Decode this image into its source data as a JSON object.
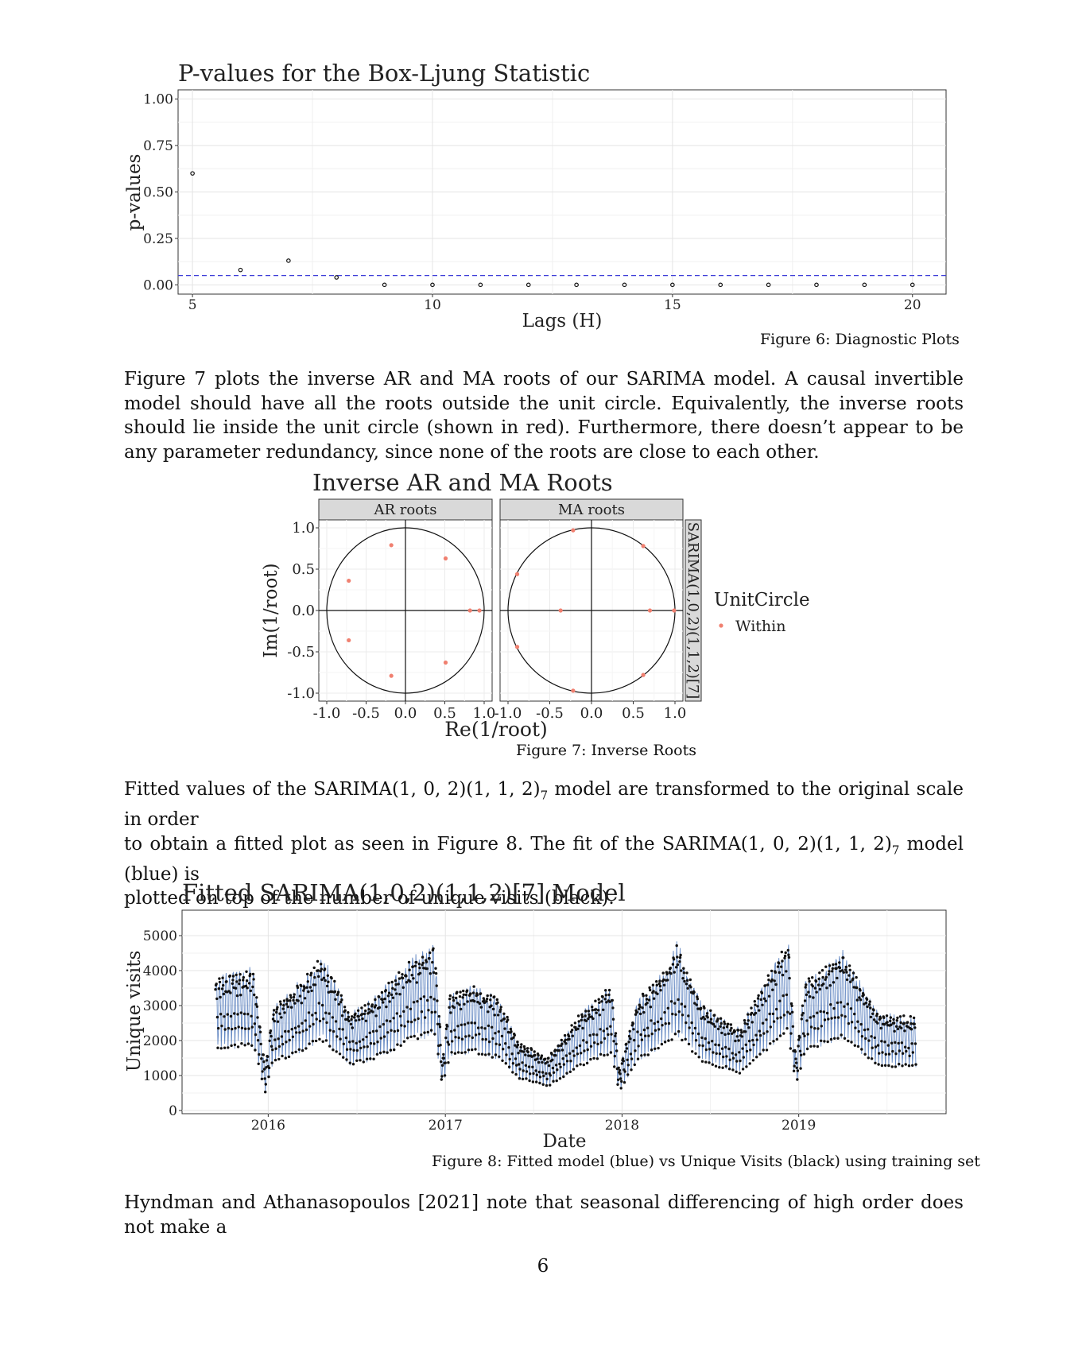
{
  "figure6": {
    "caption": "Figure 6: Diagnostic Plots",
    "chart_data": {
      "type": "scatter",
      "title": "P-values for the Box-Ljung Statistic",
      "xlabel": "Lags (H)",
      "ylabel": "p-values",
      "xlim": [
        4.7,
        20.7
      ],
      "ylim": [
        -0.05,
        1.05
      ],
      "xticks": [
        5,
        10,
        15,
        20
      ],
      "yticks": [
        0.0,
        0.25,
        0.5,
        0.75,
        1.0
      ],
      "ytick_labels": [
        "0.00",
        "0.25",
        "0.50",
        "0.75",
        "1.00"
      ],
      "threshold": 0.05,
      "x": [
        5,
        6,
        7,
        8,
        9,
        10,
        11,
        12,
        13,
        14,
        15,
        16,
        17,
        18,
        19,
        20
      ],
      "y": [
        0.6,
        0.08,
        0.13,
        0.04,
        0.0,
        0.0,
        0.0,
        0.0,
        0.0,
        0.0,
        0.0,
        0.0,
        0.0,
        0.0,
        0.0,
        0.0
      ],
      "grid": true
    }
  },
  "para1": "Figure 7 plots the inverse AR and MA roots of our SARIMA model. A causal invertible model should have all the roots outside the unit circle. Equivalently, the inverse roots should lie inside the unit circle (shown in red). Furthermore, there doesn’t appear to be any parameter redundancy, since none of the roots are close to each other.",
  "figure7": {
    "caption": "Figure 7: Inverse Roots",
    "chart_data": {
      "type": "scatter",
      "title": "Inverse AR and MA Roots",
      "xlabel": "Re(1/root)",
      "ylabel": "Im(1/root)",
      "xlim": [
        -1.0,
        1.0
      ],
      "ylim": [
        -1.0,
        1.0
      ],
      "xticks": [
        -1.0,
        -0.5,
        0.0,
        0.5,
        1.0
      ],
      "yticks": [
        -1.0,
        -0.5,
        0.0,
        0.5,
        1.0
      ],
      "xtick_labels": [
        "-1.0",
        "-0.5",
        "0.0",
        "0.5",
        "1.0"
      ],
      "ytick_labels": [
        "-1.0",
        "-0.5",
        "0.0",
        "0.5",
        "1.0"
      ],
      "strip_label": "SARIMA(1,0,2)(1,1,2)[7]",
      "legend_title": "UnitCircle",
      "legend_items": [
        "Within"
      ],
      "point_color": "#f08070",
      "panels": [
        {
          "name": "AR roots",
          "x": [
            -0.18,
            0.51,
            -0.72,
            0.82,
            0.94,
            -0.72,
            0.51,
            -0.18
          ],
          "y": [
            0.79,
            0.63,
            0.36,
            0.0,
            0.0,
            -0.36,
            -0.63,
            -0.79
          ]
        },
        {
          "name": "MA roots",
          "x": [
            -0.22,
            0.62,
            -0.89,
            -0.37,
            0.7,
            0.99,
            -0.89,
            0.62,
            -0.22
          ],
          "y": [
            0.97,
            0.78,
            0.44,
            0.0,
            0.0,
            0.0,
            -0.44,
            -0.78,
            -0.97
          ]
        }
      ]
    }
  },
  "para2": {
    "line1_a": "Fitted values of the SARIMA(1, 0, 2)(1, 1, 2)",
    "line1_sub": "7",
    "line1_b": " model are transformed to the original scale in order",
    "line2_a": "to obtain a fitted plot as seen in Figure 8. The fit of the SARIMA(1, 0, 2)(1, 1, 2)",
    "line2_sub": "7",
    "line2_b": " model (blue) is",
    "line3": "plotted on top of the number of unique visits (black)."
  },
  "figure8": {
    "caption": "Figure 8: Fitted model (blue) vs Unique Visits (black) using training set",
    "chart_data": {
      "type": "line",
      "title": "Fitted SARIMA(1,0,2)(1,1,2)[7] Model",
      "xlabel": "Date",
      "ylabel": "Unique visits",
      "ylim": [
        0,
        5500
      ],
      "yticks": [
        0,
        1000,
        2000,
        3000,
        4000,
        5000
      ],
      "xticks": [
        "2016",
        "2017",
        "2018",
        "2019"
      ],
      "date_range": [
        "2015-09-14",
        "2019-08-31"
      ],
      "series": [
        {
          "color": "#4a74b8"
        },
        {
          "color": "#111111"
        }
      ],
      "weekly_shape": [
        1.05,
        1.12,
        1.1,
        1.0,
        0.8,
        0.55,
        0.7
      ],
      "level_trace": {
        "x": [
          "2015-09-14",
          "2015-12-01",
          "2015-12-26",
          "2016-01-10",
          "2016-03-10",
          "2016-04-20",
          "2016-06-20",
          "2016-08-10",
          "2016-10-20",
          "2016-12-10",
          "2016-12-26",
          "2017-01-10",
          "2017-03-01",
          "2017-04-20",
          "2017-06-01",
          "2017-08-01",
          "2017-10-01",
          "2017-12-10",
          "2017-12-26",
          "2018-02-01",
          "2018-04-01",
          "2018-04-25",
          "2018-06-15",
          "2018-09-01",
          "2018-11-15",
          "2018-12-10",
          "2018-12-26",
          "2019-01-15",
          "2019-04-01",
          "2019-06-15",
          "2019-08-31"
        ],
        "y": [
          3300,
          3500,
          1000,
          2500,
          3200,
          3800,
          2400,
          2800,
          3700,
          4100,
          1200,
          2900,
          3100,
          2800,
          1700,
          1300,
          2300,
          3100,
          1000,
          2700,
          3500,
          4100,
          2600,
          2000,
          3700,
          4200,
          1300,
          3200,
          3900,
          2400,
          2300
        ]
      },
      "grid": true
    }
  },
  "para3": "Hyndman and Athanasopoulos [2021] note that seasonal differencing of high order does not make a",
  "page_number": "6"
}
